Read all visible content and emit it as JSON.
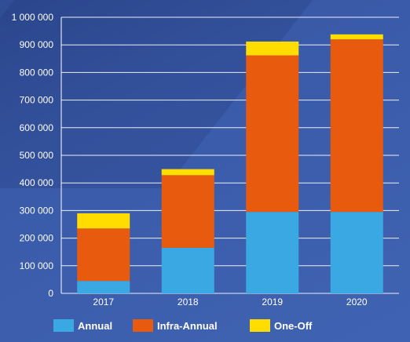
{
  "chart_data": {
    "type": "bar",
    "stacked": true,
    "categories": [
      "2017",
      "2018",
      "2019",
      "2020"
    ],
    "series": [
      {
        "name": "Annual",
        "color": "#3aa8e2",
        "values": [
          45000,
          165000,
          295000,
          295000
        ]
      },
      {
        "name": "Infra-Annual",
        "color": "#e85b0e",
        "values": [
          190000,
          263000,
          567000,
          625000
        ]
      },
      {
        "name": "One-Off",
        "color": "#ffdd00",
        "values": [
          55000,
          22000,
          50000,
          18000
        ]
      }
    ],
    "ylim": [
      0,
      1000000
    ],
    "yticks": [
      0,
      100000,
      200000,
      300000,
      400000,
      500000,
      600000,
      700000,
      800000,
      900000,
      1000000
    ],
    "ytick_labels": [
      "0",
      "100 000",
      "200 000",
      "300 000",
      "400 000",
      "500 000",
      "600 000",
      "700 000",
      "800 000",
      "900 000",
      "1 000 000"
    ],
    "grid": true,
    "legend_position": "bottom",
    "title": "",
    "xlabel": "",
    "ylabel": ""
  },
  "colors": {
    "grid": "#ffffff",
    "text": "#ffffff"
  }
}
